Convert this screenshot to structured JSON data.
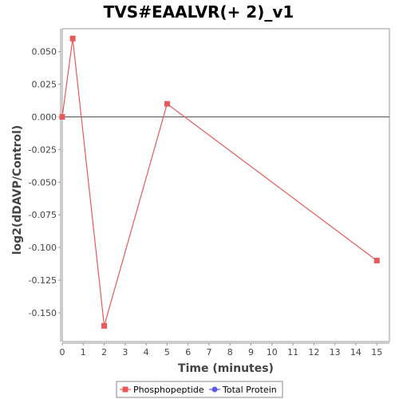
{
  "chart_data": {
    "type": "line",
    "title": "TVS#EAALVR(+ 2)_v1",
    "xlabel": "Time (minutes)",
    "ylabel": "log2(dDAVP/Control)",
    "xlim": [
      0,
      15.6
    ],
    "ylim": [
      -0.172,
      0.0675
    ],
    "x_ticks": [
      0,
      1,
      2,
      3,
      4,
      5,
      6,
      7,
      8,
      9,
      10,
      11,
      12,
      13,
      14,
      15
    ],
    "y_ticks": [
      0.05,
      0.025,
      0.0,
      -0.025,
      -0.05,
      -0.075,
      -0.1,
      -0.125,
      -0.15
    ],
    "y_tick_labels": [
      "0.050",
      "0.025",
      "0.000",
      "-0.025",
      "-0.050",
      "-0.075",
      "-0.100",
      "-0.125",
      "-0.150"
    ],
    "zero_line": true,
    "grid": false,
    "legend_position": "bottom",
    "series": [
      {
        "name": "Phosphopeptide",
        "color": "#e85a5a",
        "marker": "square",
        "points": [
          {
            "x": 0,
            "y": 0.0
          },
          {
            "x": 0.5,
            "y": 0.06
          },
          {
            "x": 2,
            "y": -0.16
          },
          {
            "x": 5,
            "y": 0.01
          },
          {
            "x": 15,
            "y": -0.11
          }
        ]
      },
      {
        "name": "Total Protein",
        "color": "#5a5ae8",
        "marker": "circle",
        "points": []
      }
    ]
  }
}
